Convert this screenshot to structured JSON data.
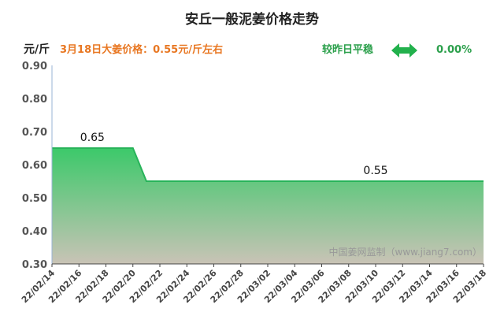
{
  "header": {
    "title": "安丘一般泥姜价格走势",
    "unit": "元/斤",
    "price_info": "3月18日大姜价格：0.55元/斤左右",
    "change_label": "较昨日平稳",
    "change_pct": "0.00%",
    "change_icon": "double-arrow-icon"
  },
  "watermark": "中国姜网监制（www.jiang7.com）",
  "colors": {
    "area_top": "#3cc96a",
    "area_bottom": "#c9c3b6",
    "line": "#28b35a",
    "accent": "#e87722",
    "arrow": "#22b14c"
  },
  "chart_data": {
    "type": "area",
    "ylim": [
      0.3,
      0.9
    ],
    "yticks": [
      "0.90",
      "0.80",
      "0.70",
      "0.60",
      "0.50",
      "0.40",
      "0.30"
    ],
    "x_ticks": [
      "22/02/14",
      "22/02/16",
      "22/02/18",
      "22/02/20",
      "22/02/22",
      "22/02/24",
      "22/02/26",
      "22/02/28",
      "22/03/02",
      "22/03/04",
      "22/03/06",
      "22/03/08",
      "22/03/10",
      "22/03/12",
      "22/03/14",
      "22/03/16",
      "22/03/18"
    ],
    "x": [
      "22/02/14",
      "22/02/20",
      "22/02/21",
      "22/03/18"
    ],
    "values": [
      0.65,
      0.65,
      0.55,
      0.55
    ],
    "data_labels": [
      {
        "x": "22/02/17",
        "value": 0.65,
        "text": "0.65"
      },
      {
        "x": "22/03/10",
        "value": 0.55,
        "text": "0.55"
      }
    ],
    "grid": false
  }
}
